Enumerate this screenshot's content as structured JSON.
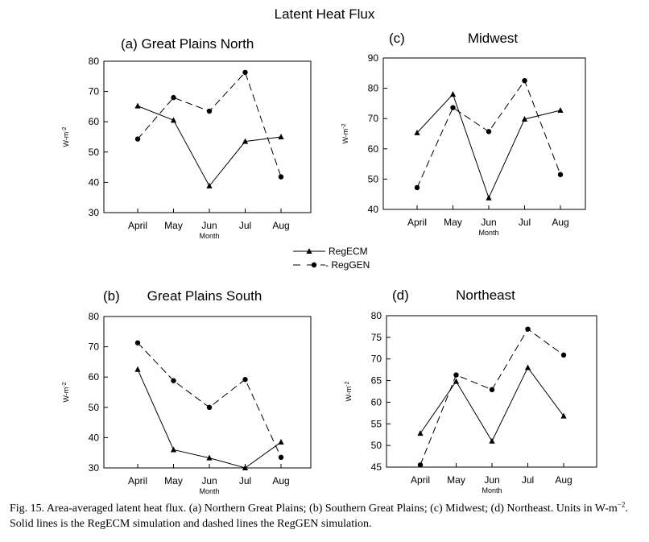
{
  "figure_title": "Latent Heat Flux",
  "legend": {
    "solid": "RegECM",
    "dashed": "- RegGEN"
  },
  "caption": {
    "line1_pre": "Fig. 15. Area-averaged latent heat flux. (a) Northern Great Plains; (b) Southern Great Plains; (c) Midwest; (d) Northeast. Units in W-m",
    "line1_sup": "−2",
    "line1_post": ".",
    "line2": "Solid lines is the RegECM simulation and dashed lines the RegGEN simulation."
  },
  "chart_data": [
    {
      "id": "a",
      "type": "line",
      "panel_label": "(a)",
      "title": "Great Plains North",
      "title_combined": true,
      "categories": [
        "April",
        "May",
        "Jun",
        "Jul",
        "Aug"
      ],
      "xlabel": "Month",
      "ylabel": "W-m",
      "ylabel_sup": "-2",
      "ylim": [
        30,
        80
      ],
      "yticks": [
        30,
        40,
        50,
        60,
        70,
        80
      ],
      "series": [
        {
          "name": "RegECM",
          "style": "solid",
          "marker": "triangle",
          "values": [
            65.2,
            60.5,
            38.8,
            53.5,
            55.0
          ]
        },
        {
          "name": "RegGEN",
          "style": "dashed",
          "marker": "circle",
          "values": [
            54.3,
            68.0,
            63.5,
            76.3,
            41.8
          ]
        }
      ]
    },
    {
      "id": "c",
      "type": "line",
      "panel_label": "(c)",
      "title": "Midwest",
      "title_combined": false,
      "categories": [
        "April",
        "May",
        "Jun",
        "Jul",
        "Aug"
      ],
      "xlabel": "Month",
      "ylabel": "W-m",
      "ylabel_sup": "-2",
      "ylim": [
        40,
        90
      ],
      "yticks": [
        40,
        50,
        60,
        70,
        80,
        90
      ],
      "series": [
        {
          "name": "RegECM",
          "style": "solid",
          "marker": "triangle",
          "values": [
            65.3,
            78.0,
            43.8,
            69.8,
            72.7
          ]
        },
        {
          "name": "RegGEN",
          "style": "dashed",
          "marker": "circle",
          "values": [
            47.2,
            73.6,
            65.7,
            82.5,
            51.5
          ]
        }
      ]
    },
    {
      "id": "b",
      "type": "line",
      "panel_label": "(b)",
      "title": "Great Plains South",
      "title_combined": false,
      "categories": [
        "April",
        "May",
        "Jun",
        "Jul",
        "Aug"
      ],
      "xlabel": "Month",
      "ylabel": "W-m",
      "ylabel_sup": "-2",
      "ylim": [
        30,
        80
      ],
      "yticks": [
        30,
        40,
        50,
        60,
        70,
        80
      ],
      "series": [
        {
          "name": "RegECM",
          "style": "solid",
          "marker": "triangle",
          "values": [
            62.5,
            36.0,
            33.3,
            30.0,
            38.5
          ]
        },
        {
          "name": "RegGEN",
          "style": "dashed",
          "marker": "circle",
          "values": [
            71.3,
            58.8,
            50.0,
            59.2,
            33.5
          ]
        }
      ]
    },
    {
      "id": "d",
      "type": "line",
      "panel_label": "(d)",
      "title": "Northeast",
      "title_combined": false,
      "categories": [
        "April",
        "May",
        "Jun",
        "Jul",
        "Aug"
      ],
      "xlabel": "Month",
      "ylabel": "W-m",
      "ylabel_sup": "-2",
      "ylim": [
        45,
        80
      ],
      "yticks": [
        45,
        50,
        55,
        60,
        65,
        70,
        75,
        80
      ],
      "series": [
        {
          "name": "RegECM",
          "style": "solid",
          "marker": "triangle",
          "values": [
            52.8,
            64.8,
            51.0,
            68.0,
            56.8
          ]
        },
        {
          "name": "RegGEN",
          "style": "dashed",
          "marker": "circle",
          "values": [
            45.5,
            66.3,
            62.9,
            76.9,
            70.9
          ]
        }
      ]
    }
  ]
}
